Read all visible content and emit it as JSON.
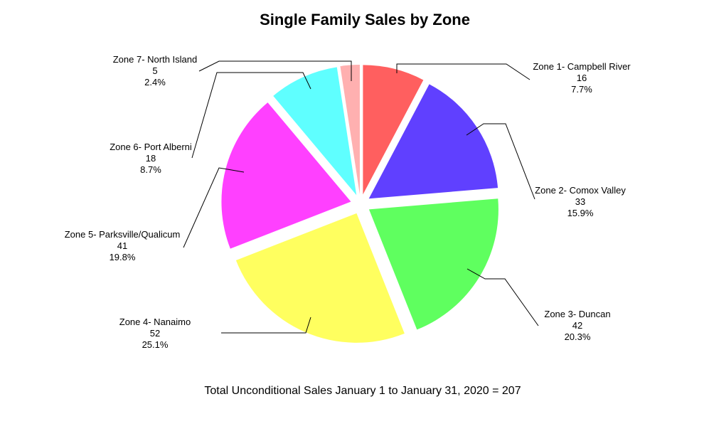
{
  "chart_data": {
    "type": "pie",
    "title": "Single Family Sales by Zone",
    "footnote": "Total Unconditional Sales January 1 to January 31, 2020 = 207",
    "slices": [
      {
        "label": "Zone 1- Campbell River",
        "value": 16,
        "pct": "7.7%",
        "color": "#ff5f5f"
      },
      {
        "label": "Zone 2- Comox Valley",
        "value": 33,
        "pct": "15.9%",
        "color": "#6040ff"
      },
      {
        "label": "Zone 3- Duncan",
        "value": 42,
        "pct": "20.3%",
        "color": "#5fff5f"
      },
      {
        "label": "Zone 4- Nanaimo",
        "value": 52,
        "pct": "25.1%",
        "color": "#ffff5f"
      },
      {
        "label": "Zone 5- Parksville/Qualicum",
        "value": 41,
        "pct": "19.8%",
        "color": "#ff40ff"
      },
      {
        "label": "Zone 6- Port Alberni",
        "value": 18,
        "pct": "8.7%",
        "color": "#5fffff"
      },
      {
        "label": "Zone 7- North Island",
        "value": 5,
        "pct": "2.4%",
        "color": "#ffb0b0"
      }
    ]
  }
}
